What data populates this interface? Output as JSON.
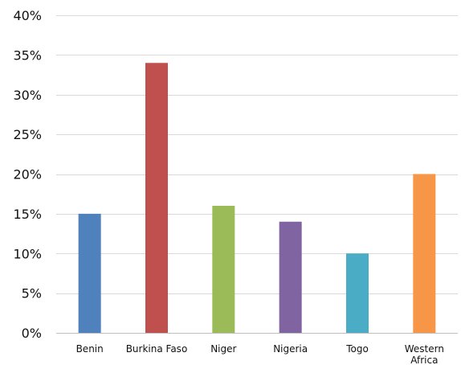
{
  "chart_data": {
    "type": "bar",
    "title_fragment": "",
    "categories": [
      "Benin",
      "Burkina Faso",
      "Niger",
      "Nigeria",
      "Togo",
      "Western Africa"
    ],
    "category_lines": [
      [
        "Benin"
      ],
      [
        "Burkina Faso"
      ],
      [
        "Niger"
      ],
      [
        "Nigeria"
      ],
      [
        "Togo"
      ],
      [
        "Western",
        "Africa"
      ]
    ],
    "values": [
      15,
      34,
      16,
      14,
      10,
      20
    ],
    "colors": [
      "#4f81bd",
      "#c0504d",
      "#9bbb59",
      "#8064a2",
      "#4bacc6",
      "#f79646"
    ],
    "ylim": [
      0,
      40
    ],
    "yticks": [
      0,
      5,
      10,
      15,
      20,
      25,
      30,
      35,
      40
    ],
    "ytick_labels": [
      "0%",
      "5%",
      "10%",
      "15%",
      "20%",
      "25%",
      "30%",
      "35%",
      "40%"
    ],
    "grid": true,
    "legend": "none",
    "xlabel": "",
    "ylabel": ""
  }
}
